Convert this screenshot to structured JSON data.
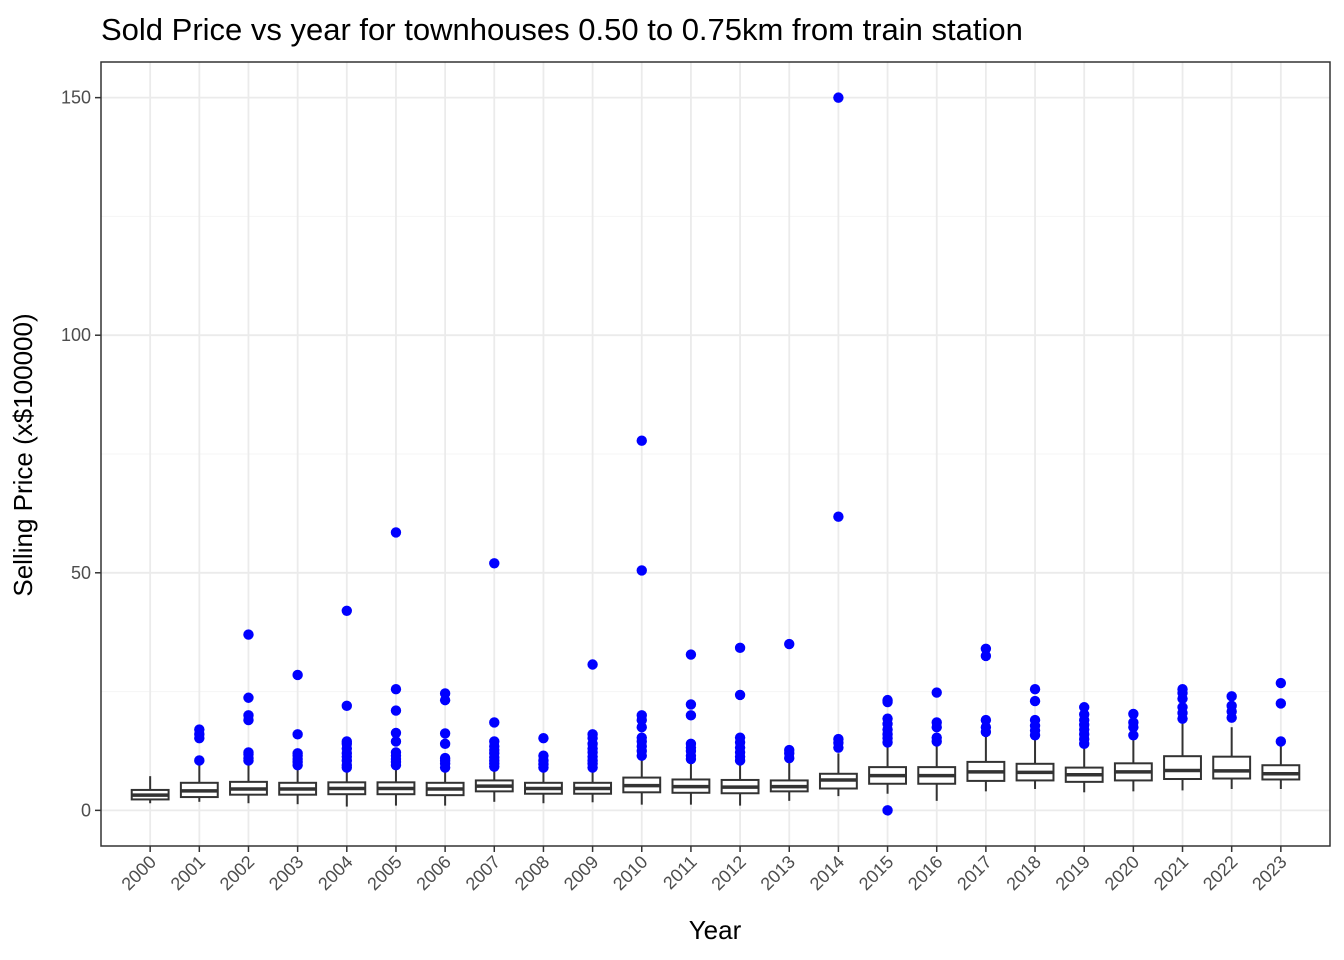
{
  "chart_data": {
    "type": "box",
    "title": "Sold Price vs year for townhouses 0.50 to 0.75km from train station",
    "xlabel": "Year",
    "ylabel": "Selling Price (x$100000)",
    "ylim": [
      -7.5,
      157.5
    ],
    "yticks": [
      0,
      50,
      100,
      150
    ],
    "grid": true,
    "colors": {
      "outlier": "#0000ff",
      "box_stroke": "#333333",
      "grid_major": "#ebebeb",
      "grid_minor": "#f4f4f4",
      "panel_border": "#333333"
    },
    "categories": [
      "2000",
      "2001",
      "2002",
      "2003",
      "2004",
      "2005",
      "2006",
      "2007",
      "2008",
      "2009",
      "2010",
      "2011",
      "2012",
      "2013",
      "2014",
      "2015",
      "2016",
      "2017",
      "2018",
      "2019",
      "2020",
      "2021",
      "2022",
      "2023"
    ],
    "boxes": [
      {
        "year": "2000",
        "whisker_low": 1.5,
        "q1": 2.3,
        "median": 3.2,
        "q3": 4.3,
        "whisker_high": 7.2,
        "outliers": []
      },
      {
        "year": "2001",
        "whisker_low": 1.8,
        "q1": 2.8,
        "median": 4.1,
        "q3": 5.8,
        "whisker_high": 9.5,
        "outliers": [
          10.5,
          15.2,
          16.0,
          17.0
        ]
      },
      {
        "year": "2002",
        "whisker_low": 1.5,
        "q1": 3.3,
        "median": 4.5,
        "q3": 6.0,
        "whisker_high": 9.8,
        "outliers": [
          10.5,
          11.0,
          11.8,
          12.2,
          19.0,
          20.0,
          23.7,
          37.0
        ]
      },
      {
        "year": "2003",
        "whisker_low": 1.3,
        "q1": 3.3,
        "median": 4.5,
        "q3": 5.8,
        "whisker_high": 8.8,
        "outliers": [
          9.5,
          10.2,
          10.8,
          11.5,
          12.0,
          16.0,
          28.5
        ]
      },
      {
        "year": "2004",
        "whisker_low": 0.8,
        "q1": 3.4,
        "median": 4.6,
        "q3": 5.9,
        "whisker_high": 8.5,
        "outliers": [
          9.0,
          9.5,
          10.5,
          11.3,
          12.0,
          13.0,
          14.0,
          14.5,
          22.0,
          42.0
        ]
      },
      {
        "year": "2005",
        "whisker_low": 1.0,
        "q1": 3.4,
        "median": 4.6,
        "q3": 5.9,
        "whisker_high": 9.0,
        "outliers": [
          9.5,
          10.2,
          10.8,
          11.5,
          12.2,
          14.5,
          16.3,
          21.0,
          25.5,
          58.5
        ]
      },
      {
        "year": "2006",
        "whisker_low": 1.0,
        "q1": 3.2,
        "median": 4.5,
        "q3": 5.8,
        "whisker_high": 8.5,
        "outliers": [
          9.0,
          9.8,
          10.5,
          11.0,
          14.0,
          16.2,
          23.2,
          24.6
        ]
      },
      {
        "year": "2007",
        "whisker_low": 1.8,
        "q1": 4.0,
        "median": 5.1,
        "q3": 6.3,
        "whisker_high": 8.8,
        "outliers": [
          9.2,
          9.8,
          10.5,
          11.2,
          12.0,
          12.7,
          13.5,
          14.5,
          18.5,
          52.0
        ]
      },
      {
        "year": "2008",
        "whisker_low": 1.5,
        "q1": 3.5,
        "median": 4.6,
        "q3": 5.8,
        "whisker_high": 8.5,
        "outliers": [
          9.0,
          9.7,
          10.5,
          11.5,
          15.2
        ]
      },
      {
        "year": "2009",
        "whisker_low": 1.7,
        "q1": 3.5,
        "median": 4.6,
        "q3": 5.8,
        "whisker_high": 8.5,
        "outliers": [
          9.0,
          9.8,
          10.5,
          11.3,
          12.2,
          13.0,
          14.0,
          15.2,
          16.0,
          30.7
        ]
      },
      {
        "year": "2010",
        "whisker_low": 1.2,
        "q1": 3.8,
        "median": 5.2,
        "q3": 6.9,
        "whisker_high": 10.5,
        "outliers": [
          11.5,
          12.5,
          13.5,
          14.5,
          15.3,
          17.5,
          19.0,
          20.0,
          50.5,
          77.8
        ]
      },
      {
        "year": "2011",
        "whisker_low": 1.2,
        "q1": 3.7,
        "median": 5.0,
        "q3": 6.5,
        "whisker_high": 10.0,
        "outliers": [
          10.8,
          11.5,
          12.5,
          13.2,
          14.0,
          20.0,
          22.3,
          32.8
        ]
      },
      {
        "year": "2012",
        "whisker_low": 1.0,
        "q1": 3.6,
        "median": 4.9,
        "q3": 6.4,
        "whisker_high": 9.8,
        "outliers": [
          10.5,
          11.3,
          12.2,
          13.2,
          14.3,
          15.3,
          24.3,
          34.2
        ]
      },
      {
        "year": "2013",
        "whisker_low": 2.0,
        "q1": 4.0,
        "median": 5.0,
        "q3": 6.3,
        "whisker_high": 10.0,
        "outliers": [
          11.0,
          12.0,
          12.7,
          35.0
        ]
      },
      {
        "year": "2014",
        "whisker_low": 3.0,
        "q1": 4.6,
        "median": 6.4,
        "q3": 7.7,
        "whisker_high": 12.0,
        "outliers": [
          13.2,
          14.2,
          15.0,
          61.8,
          150.0
        ]
      },
      {
        "year": "2015",
        "whisker_low": 3.5,
        "q1": 5.6,
        "median": 7.3,
        "q3": 9.1,
        "whisker_high": 13.5,
        "outliers": [
          0.0,
          14.3,
          15.2,
          16.0,
          17.0,
          18.2,
          19.3,
          22.8,
          23.2
        ]
      },
      {
        "year": "2016",
        "whisker_low": 2.0,
        "q1": 5.6,
        "median": 7.3,
        "q3": 9.1,
        "whisker_high": 13.8,
        "outliers": [
          14.5,
          15.3,
          17.5,
          18.5,
          24.8
        ]
      },
      {
        "year": "2017",
        "whisker_low": 4.0,
        "q1": 6.2,
        "median": 8.1,
        "q3": 10.2,
        "whisker_high": 15.5,
        "outliers": [
          16.5,
          17.5,
          19.0,
          32.5,
          34.0
        ]
      },
      {
        "year": "2018",
        "whisker_low": 4.5,
        "q1": 6.3,
        "median": 8.0,
        "q3": 9.8,
        "whisker_high": 14.8,
        "outliers": [
          15.8,
          16.8,
          17.8,
          19.0,
          23.0,
          25.5
        ]
      },
      {
        "year": "2019",
        "whisker_low": 3.8,
        "q1": 6.0,
        "median": 7.5,
        "q3": 9.0,
        "whisker_high": 13.2,
        "outliers": [
          14.0,
          15.0,
          16.0,
          17.0,
          18.0,
          19.0,
          20.2,
          21.7
        ]
      },
      {
        "year": "2020",
        "whisker_low": 4.0,
        "q1": 6.3,
        "median": 8.1,
        "q3": 9.9,
        "whisker_high": 14.8,
        "outliers": [
          15.8,
          17.5,
          18.5,
          20.3
        ]
      },
      {
        "year": "2021",
        "whisker_low": 4.2,
        "q1": 6.6,
        "median": 8.4,
        "q3": 11.4,
        "whisker_high": 18.5,
        "outliers": [
          19.3,
          20.5,
          21.7,
          23.5,
          24.7,
          25.5
        ]
      },
      {
        "year": "2022",
        "whisker_low": 4.5,
        "q1": 6.7,
        "median": 8.3,
        "q3": 11.3,
        "whisker_high": 17.5,
        "outliers": [
          19.5,
          20.8,
          22.0,
          24.0
        ]
      },
      {
        "year": "2023",
        "whisker_low": 4.5,
        "q1": 6.5,
        "median": 7.7,
        "q3": 9.5,
        "whisker_high": 13.5,
        "outliers": [
          14.5,
          22.5,
          26.8
        ]
      }
    ]
  }
}
